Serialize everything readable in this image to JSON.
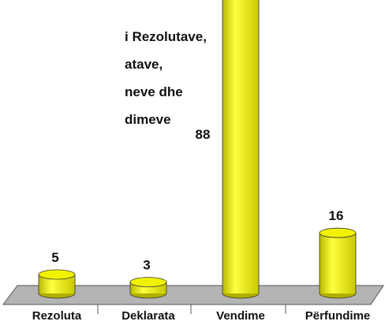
{
  "chart_data": {
    "type": "bar",
    "title_lines": [
      "i Rezolutave,",
      "atave,",
      "neve dhe",
      "dimeve"
    ],
    "categories": [
      "Rezoluta",
      "Deklarata",
      "Vendime",
      "Përfundime"
    ],
    "values": [
      5,
      3,
      88,
      16
    ],
    "color": "#f2f200"
  }
}
